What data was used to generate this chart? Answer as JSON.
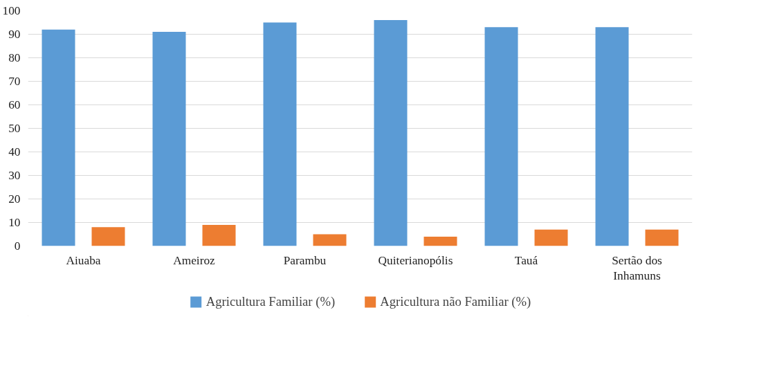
{
  "chart_data": {
    "type": "bar",
    "categories": [
      "Aiuaba",
      "Ameiroz",
      "Parambu",
      "Quiterianopólis",
      "Tauá",
      "Sertão dos Inhamuns"
    ],
    "series": [
      {
        "name": "Agricultura Familiar (%)",
        "color": "#5b9bd5",
        "values": [
          92,
          91,
          95,
          96,
          93,
          93
        ]
      },
      {
        "name": "Agricultura não Familiar (%)",
        "color": "#ed7d31",
        "values": [
          8,
          9,
          5,
          4,
          7,
          7
        ]
      }
    ],
    "ylim": [
      0,
      100
    ],
    "yticks": [
      0,
      10,
      20,
      30,
      40,
      50,
      60,
      70,
      80,
      90,
      100
    ],
    "grid": "y",
    "legend": "bottom"
  }
}
